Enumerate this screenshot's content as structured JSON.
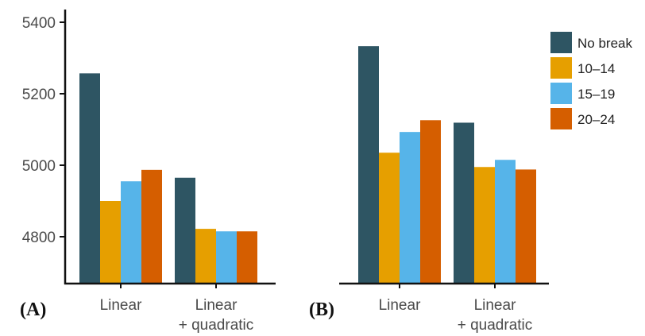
{
  "chart_data": [
    {
      "type": "bar",
      "panel_label": "(A)",
      "categories": [
        [
          "Linear"
        ],
        [
          "Linear",
          "+ quadratic"
        ]
      ],
      "series": [
        {
          "name": "No break",
          "values": [
            5257,
            4965
          ]
        },
        {
          "name": "10–14",
          "values": [
            4900,
            4822
          ]
        },
        {
          "name": "15–19",
          "values": [
            4955,
            4815
          ]
        },
        {
          "name": "20–24",
          "values": [
            4987,
            4815
          ]
        }
      ],
      "yticks": [
        "4800",
        "5000",
        "5200",
        "5400"
      ],
      "ylim": [
        4680,
        5420
      ],
      "xlabel": "",
      "ylabel": ""
    },
    {
      "type": "bar",
      "panel_label": "(B)",
      "categories": [
        [
          "Linear"
        ],
        [
          "Linear",
          "+ quadratic"
        ]
      ],
      "series": [
        {
          "name": "No break",
          "values": [
            5333,
            5119
          ]
        },
        {
          "name": "10–14",
          "values": [
            5035,
            4995
          ]
        },
        {
          "name": "15–19",
          "values": [
            5093,
            5015
          ]
        },
        {
          "name": "20–24",
          "values": [
            5126,
            4988
          ]
        }
      ],
      "ylim": [
        4680,
        5420
      ],
      "xlabel": "",
      "ylabel": ""
    }
  ],
  "legend": {
    "placement": "top-right",
    "items": [
      "No break",
      "10–14",
      "15–19",
      "20–24"
    ]
  },
  "colors": [
    "#2e5563",
    "#e69f00",
    "#56b4e9",
    "#d55e00"
  ]
}
